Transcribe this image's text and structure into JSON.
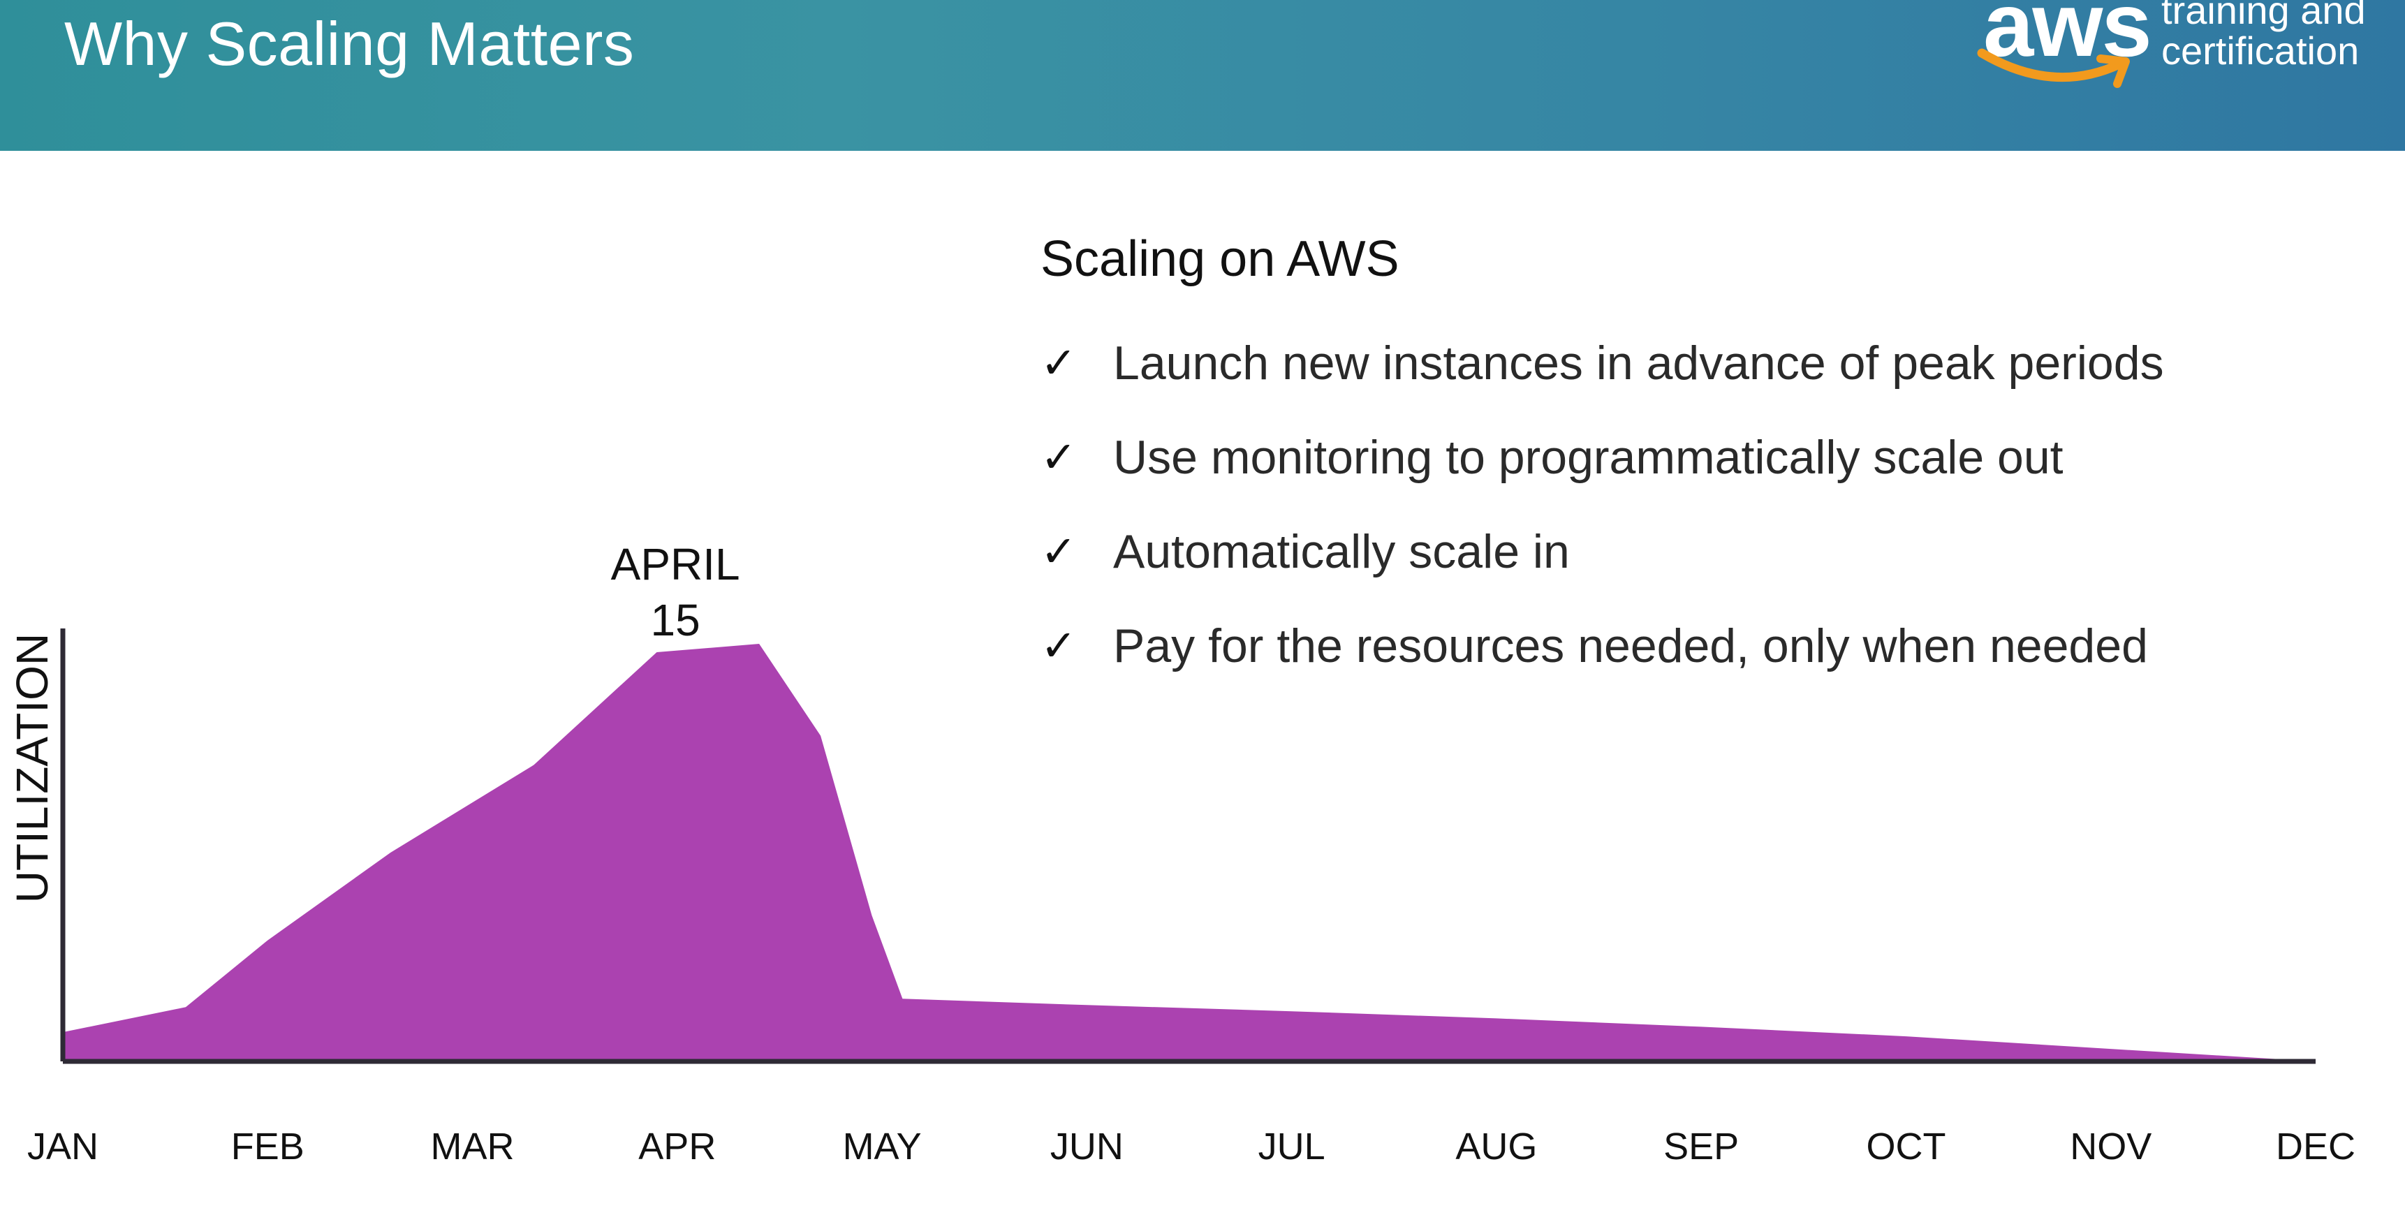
{
  "slide": {
    "title": "Why Scaling Matters",
    "logo": {
      "word": "aws",
      "line1": "training and",
      "line2": "certification"
    }
  },
  "panel": {
    "heading": "Scaling on AWS",
    "check_glyph": "✓",
    "bullets": [
      "Launch new instances in advance of peak periods",
      "Use  monitoring to programmatically scale out",
      "Automatically scale in",
      "Pay for the resources needed, only when needed"
    ]
  },
  "chart_data": {
    "type": "area",
    "title": "",
    "xlabel": "",
    "ylabel": "UTILIZATION",
    "categories": [
      "JAN",
      "FEB",
      "MAR",
      "APR",
      "MAY",
      "JUN",
      "JUL",
      "AUG",
      "SEP",
      "OCT",
      "NOV",
      "DEC"
    ],
    "x": [
      0,
      0.6,
      1.0,
      1.6,
      2.3,
      2.9,
      3.4,
      3.7,
      3.95,
      4.1,
      5,
      6,
      7,
      8,
      9,
      10,
      11
    ],
    "values": [
      7,
      13,
      29,
      50,
      71,
      98,
      100,
      78,
      35,
      15,
      13.5,
      12,
      10.3,
      8.3,
      6,
      3,
      0
    ],
    "ylim": [
      0,
      100
    ],
    "grid": false,
    "color": "#ab42b0",
    "axis_color": "#2e2a35",
    "annotations": [
      {
        "text_line1": "APRIL",
        "text_line2": "15",
        "x": 3.4
      }
    ]
  }
}
